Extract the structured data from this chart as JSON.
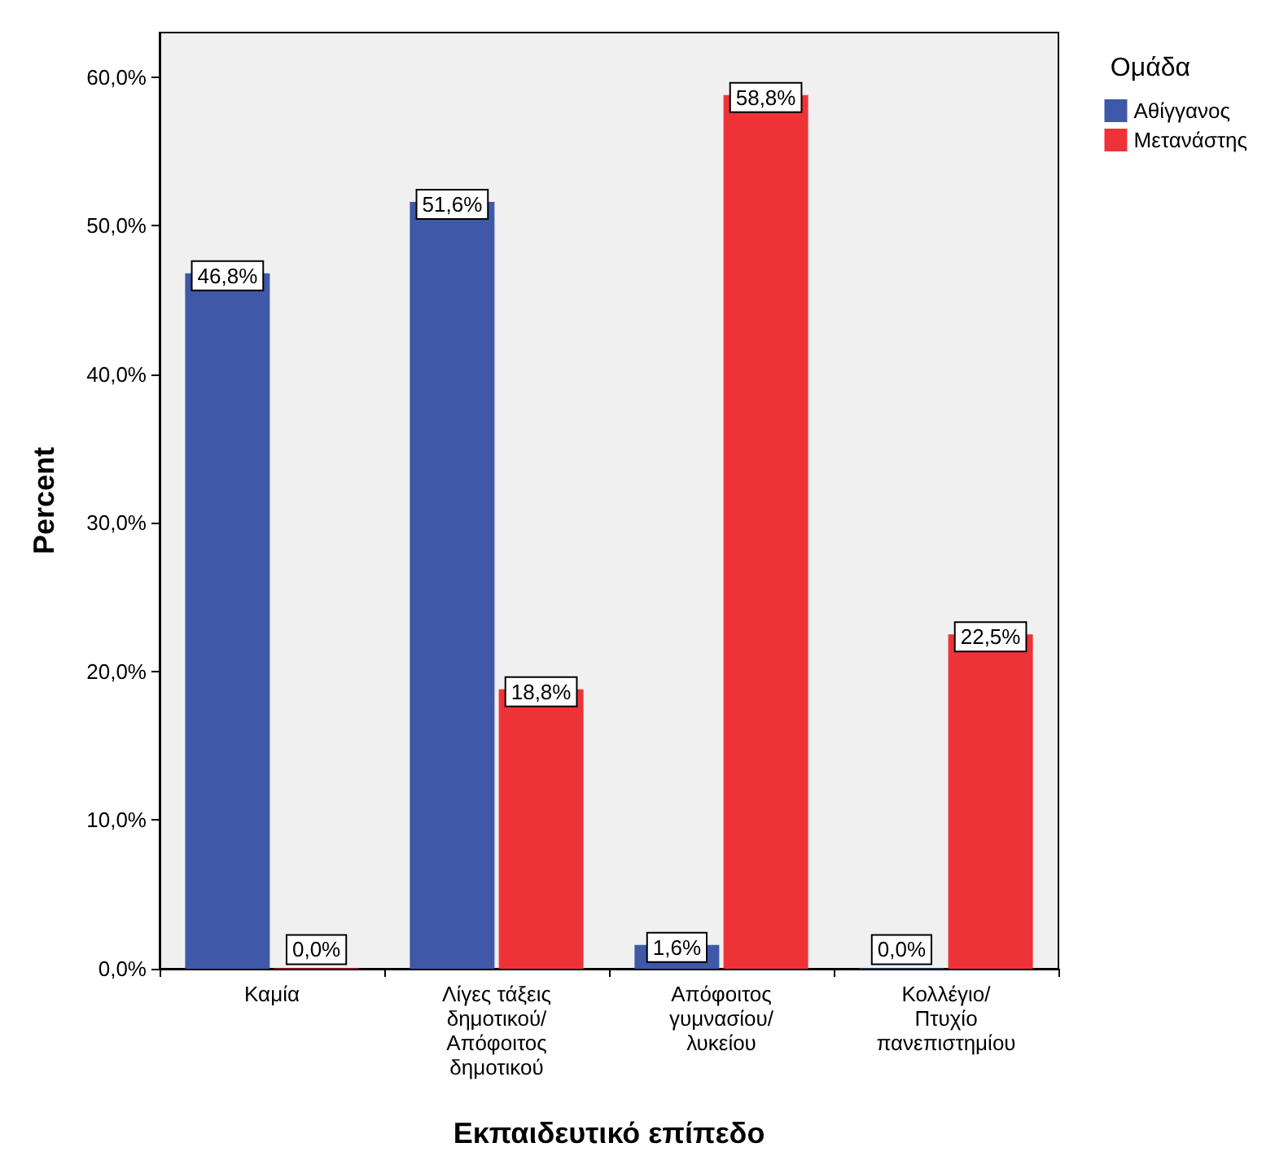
{
  "chart_data": {
    "type": "bar",
    "xlabel": "Εκπαιδευτικό επίπεδο",
    "ylabel": "Percent",
    "legend_title": "Ομάδα",
    "categories": [
      "Καμία",
      "Λίγες τάξεις δημοτικού/ Απόφοιτος δημοτικού",
      "Απόφοιτος γυμνασίου/ λυκείου",
      "Κολλέγιο/ Πτυχίο πανεπιστημίου"
    ],
    "series": [
      {
        "name": "Αθίγγανος",
        "color": "#3f58a8",
        "values": [
          46.8,
          51.6,
          1.6,
          0
        ],
        "value_labels": [
          "46,8%",
          "51,6%",
          "1,6%",
          "0,0%"
        ]
      },
      {
        "name": "Μετανάστης",
        "color": "#ee3338",
        "values": [
          0,
          18.8,
          58.8,
          22.5
        ],
        "value_labels": [
          "0,0%",
          "18,8%",
          "58,8%",
          "22,5%"
        ]
      }
    ],
    "ylim": [
      0,
      63
    ],
    "yticks": [
      {
        "value": 0,
        "label": "0,0%"
      },
      {
        "value": 10,
        "label": "10,0%"
      },
      {
        "value": 20,
        "label": "20,0%"
      },
      {
        "value": 30,
        "label": "30,0%"
      },
      {
        "value": 40,
        "label": "40,0%"
      },
      {
        "value": 50,
        "label": "50,0%"
      },
      {
        "value": 60,
        "label": "60,0%"
      }
    ],
    "grid": false,
    "legend": "top right"
  }
}
